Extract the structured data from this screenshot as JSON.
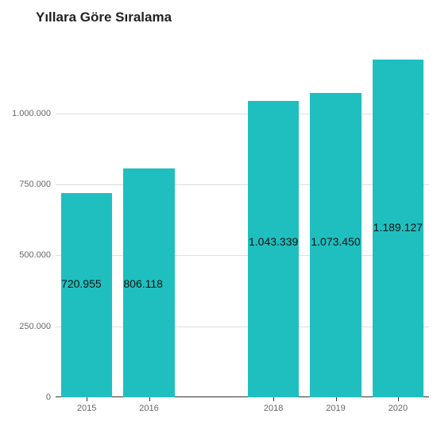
{
  "chart": {
    "type": "bar",
    "title": "Yıllara Göre Sıralama",
    "title_fontsize": 17,
    "title_color": "#222222",
    "background_color": "#ffffff",
    "bar_color": "#1fbfbf",
    "grid_color": "#dddddd",
    "axis_color": "#333333",
    "label_color": "#111111",
    "tick_label_color": "#666666",
    "tick_fontsize": 11,
    "bar_label_fontsize": 14,
    "y_axis": {
      "min": 0,
      "max": 1260000,
      "ticks": [
        0,
        250000,
        500000,
        750000,
        1000000
      ],
      "tick_labels": [
        "0",
        "250.000",
        "500.000",
        "750.000",
        "1.000.000"
      ]
    },
    "x_axis": {
      "domain_slots": 6,
      "gap_index": 2
    },
    "bars": [
      {
        "slot": 0,
        "category": "2015",
        "value": 720955,
        "label": "720.955",
        "label_align": "left",
        "label_y_value": 400000
      },
      {
        "slot": 1,
        "category": "2016",
        "value": 806118,
        "label": "806.118",
        "label_align": "left",
        "label_y_value": 400000
      },
      {
        "slot": 3,
        "category": "2018",
        "value": 1043339,
        "label": "1.043.339",
        "label_align": "center",
        "label_y_value": 550000
      },
      {
        "slot": 4,
        "category": "2019",
        "value": 1073450,
        "label": "1.073.450",
        "label_align": "center",
        "label_y_value": 550000
      },
      {
        "slot": 5,
        "category": "2020",
        "value": 1189127,
        "label": "1.189.127",
        "label_align": "center",
        "label_y_value": 600000
      }
    ],
    "bar_width_ratio": 0.82
  }
}
